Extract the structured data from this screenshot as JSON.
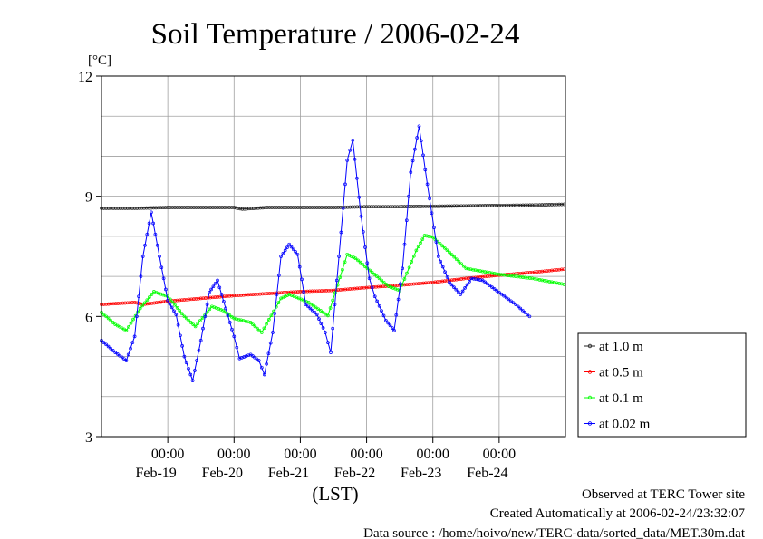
{
  "chart_data": {
    "type": "line",
    "title": "Soil Temperature / 2006-02-24",
    "ylabel": "[°C]",
    "xlabel": "(LST)",
    "ylim": [
      3,
      12
    ],
    "yticks": [
      3,
      6,
      9,
      12
    ],
    "x_range": [
      "2006-02-18T00:00",
      "2006-02-25T00:00"
    ],
    "xticks": [
      {
        "time_label": "00:00",
        "date_label": "Feb-19",
        "at": "2006-02-19T00:00"
      },
      {
        "time_label": "00:00",
        "date_label": "Feb-20",
        "at": "2006-02-20T00:00"
      },
      {
        "time_label": "00:00",
        "date_label": "Feb-21",
        "at": "2006-02-21T00:00"
      },
      {
        "time_label": "00:00",
        "date_label": "Feb-22",
        "at": "2006-02-22T00:00"
      },
      {
        "time_label": "00:00",
        "date_label": "Feb-23",
        "at": "2006-02-23T00:00"
      },
      {
        "time_label": "00:00",
        "date_label": "Feb-24",
        "at": "2006-02-24T00:00"
      }
    ],
    "grid": true,
    "legend_position": "right",
    "series": [
      {
        "name": "at 1.0 m",
        "color": "#222222",
        "points": [
          [
            "2006-02-18T00:00",
            8.7
          ],
          [
            "2006-02-18T12:00",
            8.7
          ],
          [
            "2006-02-19T00:00",
            8.72
          ],
          [
            "2006-02-19T12:00",
            8.72
          ],
          [
            "2006-02-20T00:00",
            8.72
          ],
          [
            "2006-02-20T03:00",
            8.68
          ],
          [
            "2006-02-20T12:00",
            8.72
          ],
          [
            "2006-02-21T00:00",
            8.72
          ],
          [
            "2006-02-21T12:00",
            8.72
          ],
          [
            "2006-02-22T00:00",
            8.74
          ],
          [
            "2006-02-22T12:00",
            8.74
          ],
          [
            "2006-02-23T00:00",
            8.75
          ],
          [
            "2006-02-23T12:00",
            8.76
          ],
          [
            "2006-02-24T00:00",
            8.77
          ],
          [
            "2006-02-24T12:00",
            8.78
          ],
          [
            "2006-02-24T23:30",
            8.8
          ]
        ]
      },
      {
        "name": "at 0.5 m",
        "color": "#ff0000",
        "points": [
          [
            "2006-02-18T00:00",
            6.3
          ],
          [
            "2006-02-18T12:00",
            6.35
          ],
          [
            "2006-02-18T15:00",
            6.3
          ],
          [
            "2006-02-19T00:00",
            6.38
          ],
          [
            "2006-02-19T12:00",
            6.45
          ],
          [
            "2006-02-20T00:00",
            6.52
          ],
          [
            "2006-02-20T12:00",
            6.57
          ],
          [
            "2006-02-21T00:00",
            6.62
          ],
          [
            "2006-02-21T12:00",
            6.65
          ],
          [
            "2006-02-22T00:00",
            6.72
          ],
          [
            "2006-02-22T12:00",
            6.78
          ],
          [
            "2006-02-23T00:00",
            6.85
          ],
          [
            "2006-02-23T12:00",
            6.95
          ],
          [
            "2006-02-24T00:00",
            7.03
          ],
          [
            "2006-02-24T12:00",
            7.1
          ],
          [
            "2006-02-24T23:30",
            7.18
          ]
        ]
      },
      {
        "name": "at 0.1 m",
        "color": "#00ff00",
        "points": [
          [
            "2006-02-18T00:00",
            6.1
          ],
          [
            "2006-02-18T05:00",
            5.8
          ],
          [
            "2006-02-18T09:00",
            5.65
          ],
          [
            "2006-02-18T14:00",
            6.2
          ],
          [
            "2006-02-18T19:00",
            6.62
          ],
          [
            "2006-02-19T00:00",
            6.5
          ],
          [
            "2006-02-19T06:00",
            6.0
          ],
          [
            "2006-02-19T10:00",
            5.75
          ],
          [
            "2006-02-19T16:00",
            6.25
          ],
          [
            "2006-02-19T20:00",
            6.15
          ],
          [
            "2006-02-20T00:00",
            5.95
          ],
          [
            "2006-02-20T06:00",
            5.85
          ],
          [
            "2006-02-20T10:00",
            5.6
          ],
          [
            "2006-02-20T17:00",
            6.45
          ],
          [
            "2006-02-20T20:00",
            6.55
          ],
          [
            "2006-02-21T03:00",
            6.35
          ],
          [
            "2006-02-21T10:00",
            6.02
          ],
          [
            "2006-02-21T17:00",
            7.55
          ],
          [
            "2006-02-21T20:00",
            7.45
          ],
          [
            "2006-02-22T02:00",
            7.1
          ],
          [
            "2006-02-22T08:00",
            6.75
          ],
          [
            "2006-02-22T12:00",
            6.65
          ],
          [
            "2006-02-22T18:00",
            7.65
          ],
          [
            "2006-02-22T21:00",
            8.02
          ],
          [
            "2006-02-23T00:00",
            7.98
          ],
          [
            "2006-02-23T06:00",
            7.6
          ],
          [
            "2006-02-23T12:00",
            7.2
          ],
          [
            "2006-02-24T00:00",
            7.05
          ],
          [
            "2006-02-24T12:00",
            6.95
          ],
          [
            "2006-02-24T23:30",
            6.8
          ]
        ]
      },
      {
        "name": "at 0.02 m",
        "color": "#0000ff",
        "points": [
          [
            "2006-02-18T00:00",
            5.4
          ],
          [
            "2006-02-18T05:00",
            5.1
          ],
          [
            "2006-02-18T09:00",
            4.9
          ],
          [
            "2006-02-18T12:00",
            5.5
          ],
          [
            "2006-02-18T15:00",
            7.5
          ],
          [
            "2006-02-18T18:00",
            8.6
          ],
          [
            "2006-02-18T21:00",
            7.5
          ],
          [
            "2006-02-19T00:00",
            6.4
          ],
          [
            "2006-02-19T03:00",
            6.05
          ],
          [
            "2006-02-19T06:00",
            5.0
          ],
          [
            "2006-02-19T09:00",
            4.4
          ],
          [
            "2006-02-19T12:00",
            5.4
          ],
          [
            "2006-02-19T15:00",
            6.6
          ],
          [
            "2006-02-19T18:00",
            6.9
          ],
          [
            "2006-02-19T21:00",
            6.2
          ],
          [
            "2006-02-20T00:00",
            5.5
          ],
          [
            "2006-02-20T02:00",
            4.95
          ],
          [
            "2006-02-20T06:00",
            5.05
          ],
          [
            "2006-02-20T09:00",
            4.9
          ],
          [
            "2006-02-20T11:00",
            4.55
          ],
          [
            "2006-02-20T14:00",
            5.6
          ],
          [
            "2006-02-20T17:00",
            7.5
          ],
          [
            "2006-02-20T20:00",
            7.8
          ],
          [
            "2006-02-20T23:00",
            7.55
          ],
          [
            "2006-02-21T02:00",
            6.3
          ],
          [
            "2006-02-21T06:00",
            6.05
          ],
          [
            "2006-02-21T09:00",
            5.6
          ],
          [
            "2006-02-21T11:00",
            5.1
          ],
          [
            "2006-02-21T14:00",
            7.5
          ],
          [
            "2006-02-21T17:00",
            9.9
          ],
          [
            "2006-02-21T19:00",
            10.4
          ],
          [
            "2006-02-21T22:00",
            8.5
          ],
          [
            "2006-02-22T01:00",
            6.95
          ],
          [
            "2006-02-22T03:00",
            6.5
          ],
          [
            "2006-02-22T07:00",
            5.9
          ],
          [
            "2006-02-22T10:00",
            5.65
          ],
          [
            "2006-02-22T13:00",
            7.2
          ],
          [
            "2006-02-22T16:00",
            9.6
          ],
          [
            "2006-02-22T19:00",
            10.75
          ],
          [
            "2006-02-22T22:00",
            9.3
          ],
          [
            "2006-02-23T02:00",
            7.5
          ],
          [
            "2006-02-23T06:00",
            6.85
          ],
          [
            "2006-02-23T10:00",
            6.55
          ],
          [
            "2006-02-23T14:00",
            6.95
          ],
          [
            "2006-02-23T18:00",
            6.9
          ],
          [
            "2006-02-24T00:00",
            6.6
          ],
          [
            "2006-02-24T06:00",
            6.3
          ],
          [
            "2006-02-24T11:00",
            6.0
          ]
        ]
      }
    ]
  },
  "footer": {
    "observed": "Observed at TERC Tower site",
    "created": "Created Automatically at 2006-02-24/23:32:07",
    "source": "Data source : /home/hoivo/new/TERC-data/sorted_data/MET.30m.dat"
  }
}
